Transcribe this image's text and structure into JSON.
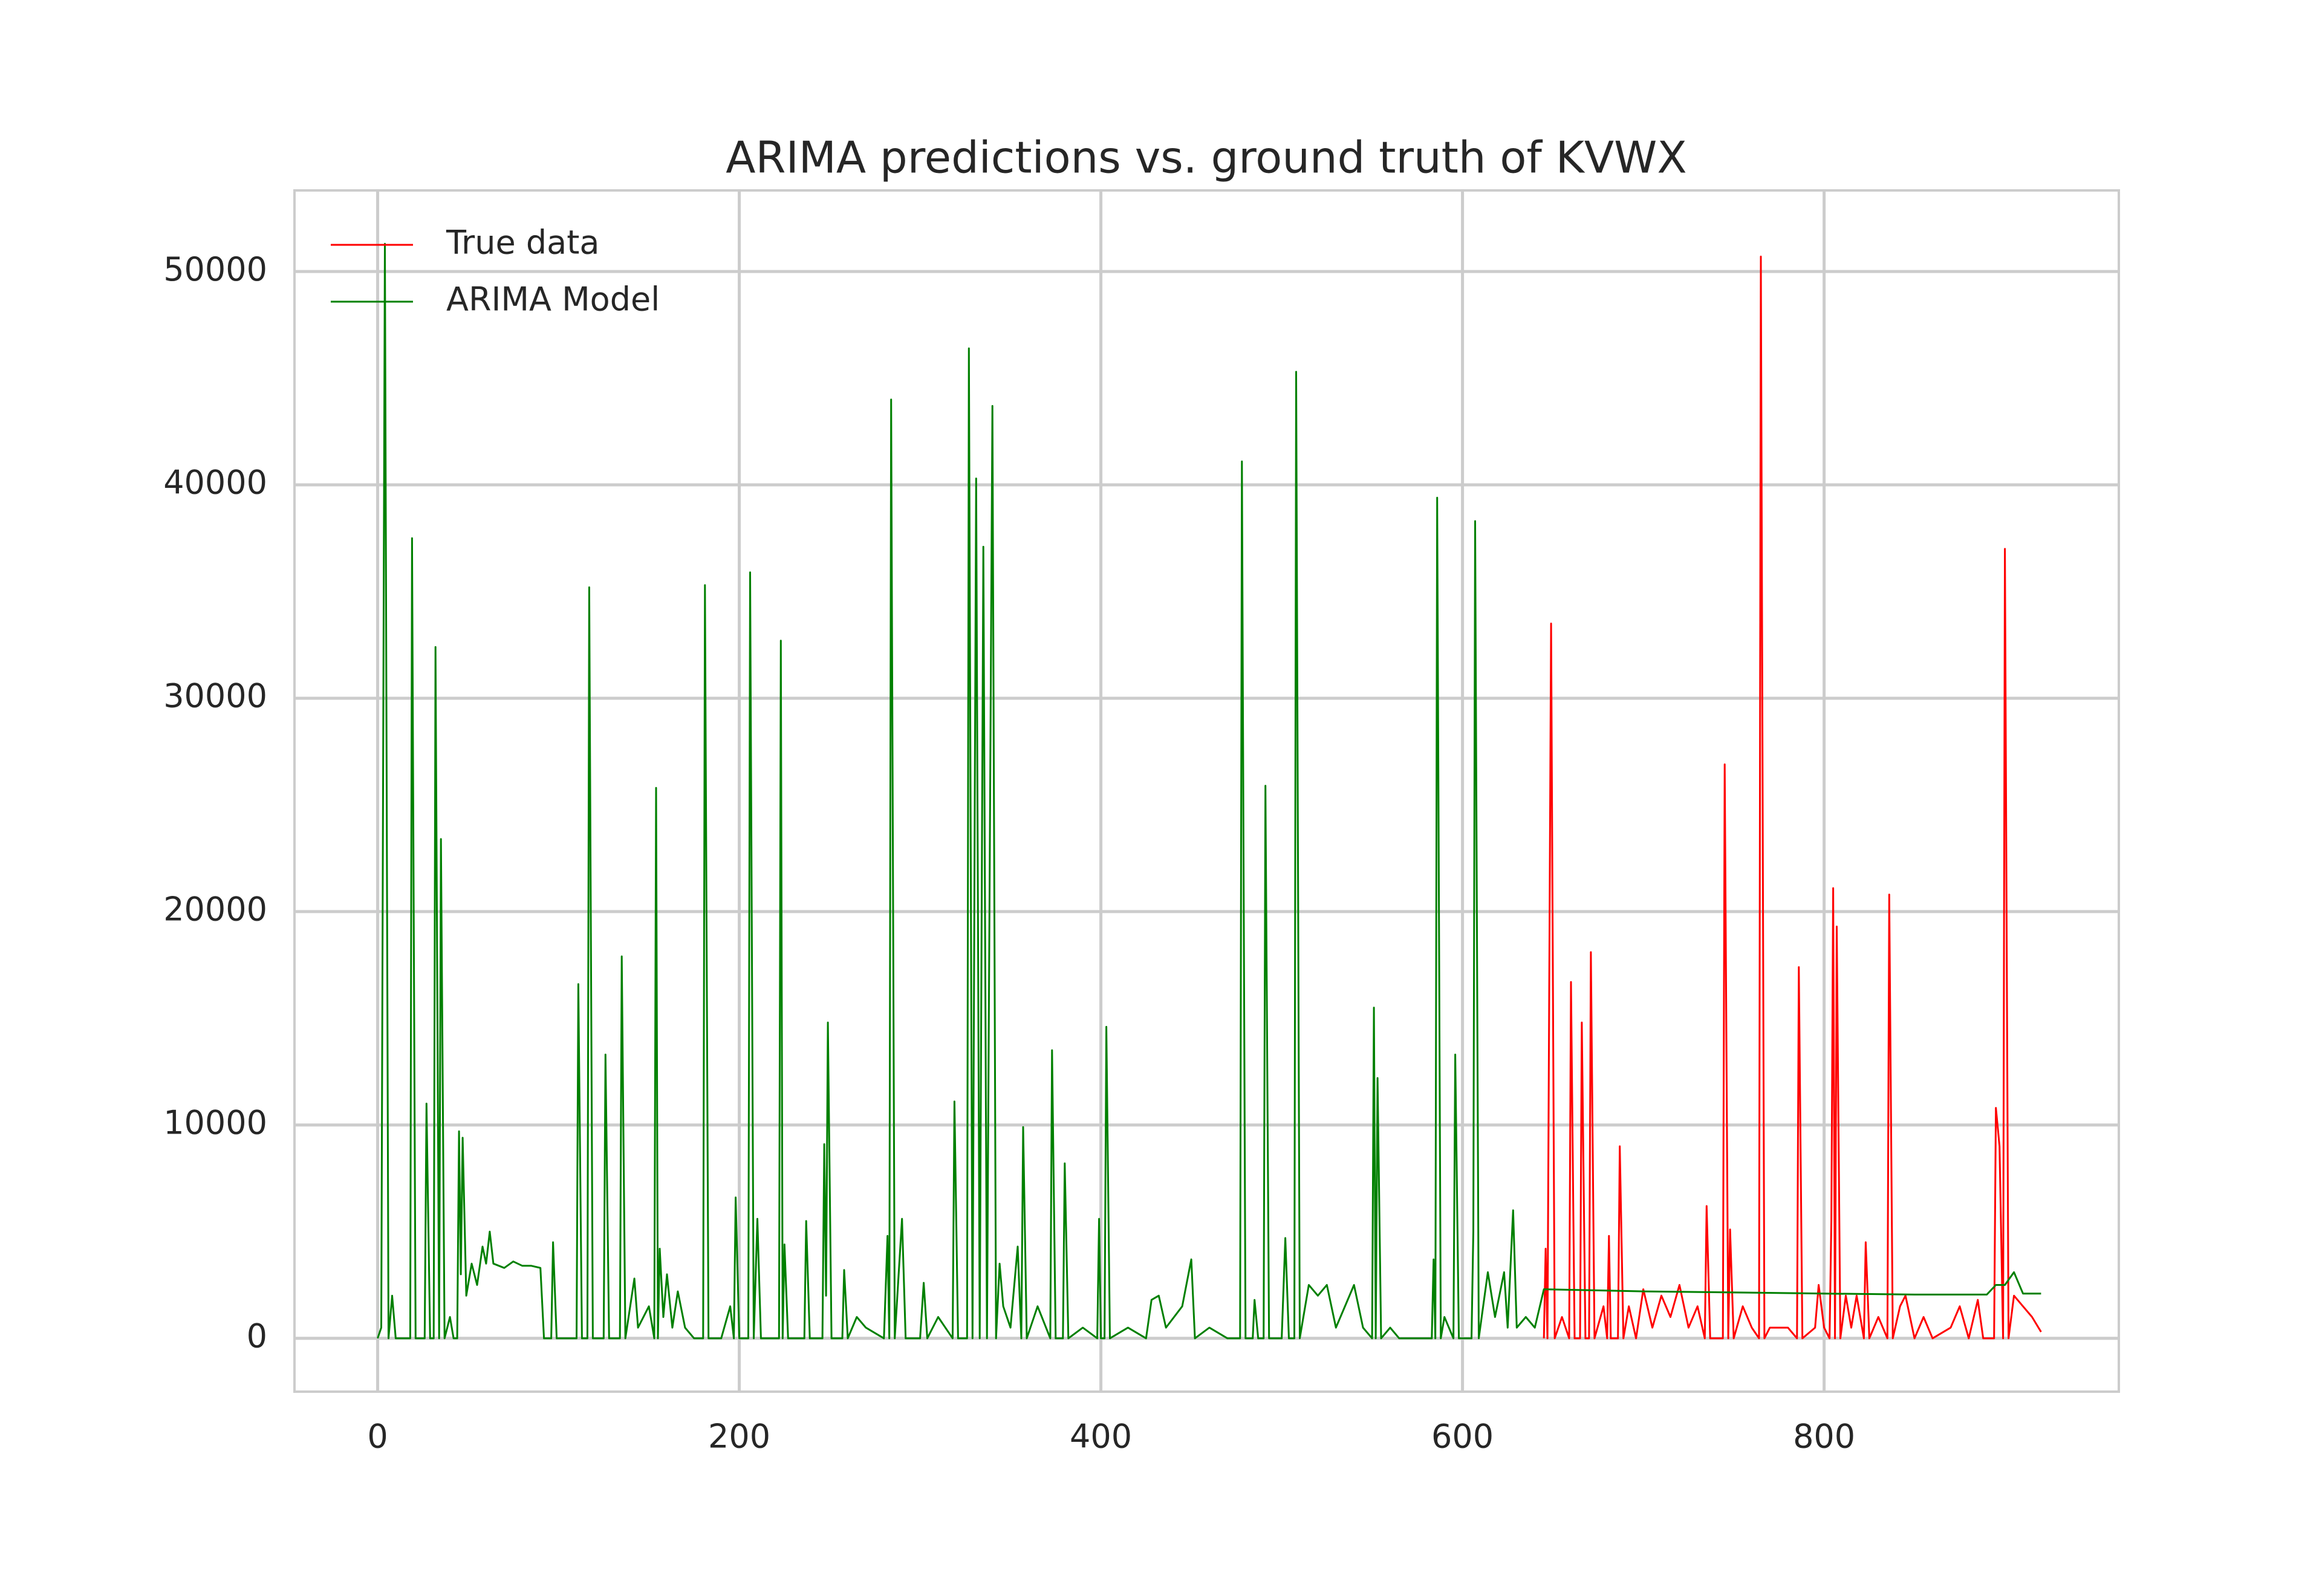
{
  "chart_data": {
    "type": "line",
    "title": "ARIMA predictions vs. ground truth of KVWX",
    "xlim": [
      -46,
      963
    ],
    "ylim": [
      -2500,
      53800
    ],
    "xticks": [
      0,
      200,
      400,
      600,
      800
    ],
    "yticks": [
      0,
      10000,
      20000,
      30000,
      40000,
      50000
    ],
    "grid": true,
    "legend": "upper left",
    "series": [
      {
        "name": "True data",
        "color": "#ff0000",
        "x": [
          645,
          646,
          647,
          649,
          651,
          655,
          659,
          660,
          662,
          665,
          666,
          668,
          670,
          671,
          673,
          678,
          680,
          681,
          682,
          686,
          687,
          689,
          692,
          696,
          700,
          705,
          710,
          715,
          720,
          725,
          730,
          734,
          735,
          737,
          744,
          745,
          747,
          748,
          750,
          755,
          760,
          764,
          765,
          767,
          770,
          780,
          785,
          786,
          788,
          795,
          797,
          800,
          803,
          804,
          805,
          806,
          807,
          809,
          812,
          815,
          818,
          822,
          823,
          825,
          830,
          835,
          836,
          838,
          842,
          845,
          850,
          855,
          860,
          870,
          875,
          880,
          885,
          888,
          894,
          895,
          897,
          899,
          900,
          902,
          905,
          910,
          915,
          920
        ],
        "values": [
          0,
          4200,
          0,
          33500,
          0,
          1000,
          0,
          16700,
          0,
          0,
          14800,
          0,
          0,
          18100,
          0,
          1500,
          0,
          4800,
          0,
          0,
          9000,
          0,
          1500,
          0,
          2300,
          500,
          2000,
          1000,
          2500,
          500,
          1500,
          0,
          6200,
          0,
          0,
          26900,
          0,
          5100,
          0,
          1500,
          500,
          0,
          50700,
          0,
          500,
          500,
          0,
          17400,
          0,
          500,
          2500,
          500,
          0,
          5500,
          21100,
          0,
          19300,
          0,
          2000,
          500,
          2000,
          0,
          4500,
          0,
          1000,
          0,
          20800,
          0,
          1500,
          2000,
          0,
          1000,
          0,
          500,
          1500,
          0,
          1800,
          0,
          0,
          10800,
          9000,
          0,
          37000,
          0,
          2000,
          1500,
          1000,
          300
        ]
      },
      {
        "name": "ARIMA Model",
        "color": "#008000",
        "x": [
          0,
          2,
          4,
          6,
          8,
          10,
          18,
          19,
          21,
          26,
          27,
          29,
          31,
          32,
          34,
          35,
          37,
          40,
          42,
          44,
          45,
          46,
          47,
          49,
          52,
          55,
          58,
          60,
          62,
          64,
          70,
          75,
          80,
          85,
          90,
          92,
          96,
          97,
          99,
          110,
          111,
          113,
          116,
          117,
          119,
          125,
          126,
          128,
          134,
          135,
          137,
          142,
          144,
          150,
          153,
          154,
          155,
          156,
          158,
          160,
          163,
          166,
          170,
          175,
          180,
          181,
          183,
          190,
          195,
          197,
          198,
          200,
          205,
          206,
          208,
          210,
          212,
          222,
          223,
          224,
          225,
          227,
          236,
          237,
          239,
          246,
          247,
          248,
          249,
          251,
          257,
          258,
          260,
          265,
          270,
          280,
          282,
          283,
          284,
          286,
          290,
          292,
          300,
          302,
          304,
          310,
          318,
          319,
          321,
          326,
          327,
          329,
          331,
          333,
          335,
          337,
          340,
          342,
          344,
          346,
          350,
          354,
          356,
          357,
          359,
          365,
          372,
          373,
          375,
          379,
          380,
          382,
          390,
          398,
          399,
          400,
          402,
          403,
          405,
          415,
          425,
          428,
          432,
          436,
          445,
          450,
          452,
          460,
          470,
          477,
          478,
          480,
          484,
          485,
          487,
          490,
          491,
          493,
          500,
          502,
          504,
          507,
          508,
          510,
          515,
          520,
          525,
          530,
          540,
          545,
          550,
          551,
          552,
          553,
          555,
          560,
          565,
          583,
          584,
          585,
          586,
          588,
          590,
          595,
          596,
          598,
          605,
          606,
          607,
          609,
          614,
          618,
          623,
          625,
          628,
          630,
          635,
          640,
          645,
          700,
          750,
          800,
          850,
          890,
          895,
          900,
          905,
          910,
          920
        ],
        "values": [
          0,
          500,
          51300,
          0,
          2000,
          0,
          0,
          37500,
          0,
          0,
          11000,
          0,
          0,
          32400,
          0,
          23400,
          0,
          1000,
          0,
          0,
          9700,
          3000,
          9400,
          2000,
          3500,
          2500,
          4300,
          3500,
          5000,
          3500,
          3300,
          3600,
          3400,
          3400,
          3300,
          0,
          0,
          4500,
          0,
          0,
          16600,
          0,
          0,
          35200,
          0,
          0,
          13300,
          0,
          0,
          17900,
          0,
          2800,
          500,
          1500,
          0,
          25800,
          0,
          4200,
          1000,
          3000,
          500,
          2200,
          500,
          0,
          0,
          35300,
          0,
          0,
          1500,
          0,
          6600,
          0,
          0,
          35900,
          0,
          5600,
          0,
          0,
          32700,
          0,
          4400,
          0,
          0,
          5500,
          0,
          0,
          9100,
          2000,
          14800,
          0,
          0,
          3200,
          0,
          1000,
          500,
          0,
          4800,
          0,
          44000,
          0,
          5600,
          0,
          0,
          2600,
          0,
          1000,
          0,
          11100,
          0,
          0,
          46400,
          0,
          40300,
          0,
          37100,
          0,
          43700,
          0,
          3500,
          1500,
          500,
          4300,
          0,
          9900,
          0,
          1500,
          0,
          13500,
          0,
          0,
          8200,
          0,
          500,
          0,
          5600,
          0,
          0,
          14600,
          0,
          500,
          0,
          1800,
          2000,
          500,
          1500,
          3700,
          0,
          500,
          0,
          0,
          41100,
          0,
          0,
          1800,
          0,
          0,
          25900,
          0,
          0,
          4700,
          0,
          0,
          45300,
          0,
          2500,
          2000,
          2500,
          500,
          2500,
          500,
          0,
          15500,
          0,
          12200,
          0,
          500,
          0,
          0,
          3700,
          0,
          39400,
          0,
          1000,
          0,
          13300,
          0,
          0,
          5000,
          38300,
          0,
          3100,
          1000,
          3100,
          500,
          6000,
          500,
          1000,
          500,
          2300,
          2200,
          2150,
          2100,
          2050,
          2050,
          2500,
          2500,
          3100,
          2100,
          2100
        ]
      }
    ]
  }
}
